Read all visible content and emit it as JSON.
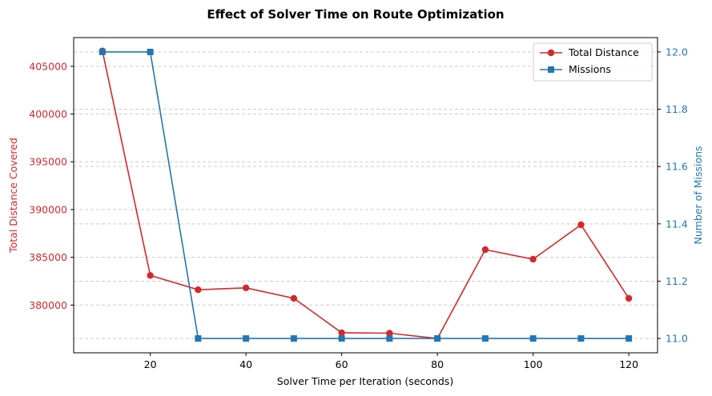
{
  "chart_data": {
    "type": "line",
    "title": "Effect of Solver Time on Route Optimization",
    "xlabel": "Solver Time per Iteration (seconds)",
    "ylabel_left": "Total Distance Covered",
    "ylabel_right": "Number of Missions",
    "x": [
      10,
      20,
      30,
      40,
      50,
      60,
      70,
      80,
      90,
      100,
      110,
      120
    ],
    "xlim": [
      4,
      126
    ],
    "x_ticks": [
      20,
      40,
      60,
      80,
      100,
      120
    ],
    "ylim_left": [
      375000,
      408000
    ],
    "y_ticks_left": [
      380000,
      385000,
      390000,
      395000,
      400000,
      405000
    ],
    "ylim_right": [
      10.95,
      12.05
    ],
    "y_ticks_right": [
      11.0,
      11.2,
      11.4,
      11.6,
      11.8,
      12.0
    ],
    "grid": "horizontal dashed",
    "legend_position": "top-right",
    "series": [
      {
        "name": "Total Distance",
        "axis": "left",
        "marker": "circle",
        "color": "#d62728",
        "values": [
          406600,
          383100,
          381600,
          381800,
          380700,
          377100,
          377050,
          376500,
          385800,
          384800,
          388400,
          380700
        ]
      },
      {
        "name": "Missions",
        "axis": "right",
        "marker": "square",
        "color": "#1f77b4",
        "values": [
          12,
          12,
          11,
          11,
          11,
          11,
          11,
          11,
          11,
          11,
          11,
          11
        ]
      }
    ]
  }
}
